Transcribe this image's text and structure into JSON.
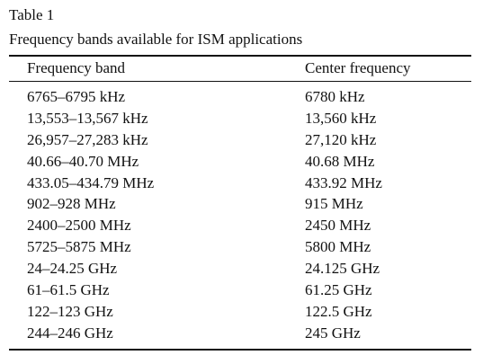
{
  "table": {
    "number": "Table 1",
    "title": "Frequency bands available for ISM applications",
    "columns": [
      "Frequency band",
      "Center frequency"
    ],
    "rows": [
      [
        "6765–6795 kHz",
        "6780 kHz"
      ],
      [
        "13,553–13,567 kHz",
        "13,560 kHz"
      ],
      [
        "26,957–27,283 kHz",
        "27,120 kHz"
      ],
      [
        "40.66–40.70 MHz",
        "40.68 MHz"
      ],
      [
        "433.05–434.79 MHz",
        "433.92 MHz"
      ],
      [
        "902–928 MHz",
        "915 MHz"
      ],
      [
        "2400–2500 MHz",
        "2450 MHz"
      ],
      [
        "5725–5875 MHz",
        "5800 MHz"
      ],
      [
        "24–24.25 GHz",
        "24.125 GHz"
      ],
      [
        "61–61.5 GHz",
        "61.25 GHz"
      ],
      [
        "122–123 GHz",
        "122.5 GHz"
      ],
      [
        "244–246 GHz",
        "245 GHz"
      ]
    ]
  }
}
